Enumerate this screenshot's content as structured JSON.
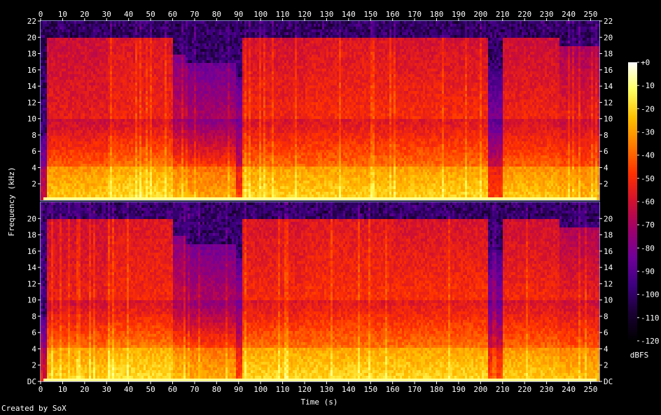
{
  "credit": "Created by SoX",
  "chart_data": {
    "type": "heatmap",
    "title": "",
    "xlabel": "Time (s)",
    "ylabel": "Frequency (kHz)",
    "colorbar_label": "dBFS",
    "xlim": [
      0,
      254
    ],
    "x_ticks": [
      "0",
      "10",
      "20",
      "30",
      "40",
      "50",
      "60",
      "70",
      "80",
      "90",
      "100",
      "110",
      "120",
      "130",
      "140",
      "150",
      "160",
      "170",
      "180",
      "190",
      "200",
      "210",
      "220",
      "230",
      "240",
      "250"
    ],
    "y_ticks_top": [
      "2",
      "4",
      "6",
      "8",
      "10",
      "12",
      "14",
      "16",
      "18",
      "20",
      "22"
    ],
    "y_ticks_bottom": [
      "DC",
      "2",
      "4",
      "6",
      "8",
      "10",
      "12",
      "14",
      "16",
      "18",
      "20"
    ],
    "ylim_khz": [
      0,
      22
    ],
    "colorbar_ticks": [
      "+0",
      "-10",
      "-20",
      "-30",
      "-40",
      "-50",
      "-60",
      "-70",
      "-80",
      "-90",
      "-100",
      "-110",
      "-120"
    ],
    "colorbar_range_db": [
      -120,
      0
    ],
    "colormap_stops": [
      "#000000",
      "#1a0033",
      "#3d0080",
      "#70009a",
      "#a0006a",
      "#d01030",
      "#ff3000",
      "#ff7a00",
      "#ffc000",
      "#ffff60",
      "#ffffff"
    ],
    "channels": 2,
    "segments": [
      {
        "start": 0,
        "end": 2,
        "ceiling_khz": 8,
        "upper_db": -100,
        "mid_db": -90,
        "low_db": -70
      },
      {
        "start": 2,
        "end": 30,
        "ceiling_khz": 20,
        "upper_db": -62,
        "mid_db": -55,
        "low_db": -32
      },
      {
        "start": 30,
        "end": 60,
        "ceiling_khz": 20,
        "upper_db": -58,
        "mid_db": -52,
        "low_db": -28
      },
      {
        "start": 60,
        "end": 65,
        "ceiling_khz": 18,
        "upper_db": -80,
        "mid_db": -65,
        "low_db": -35
      },
      {
        "start": 65,
        "end": 88,
        "ceiling_khz": 17,
        "upper_db": -84,
        "mid_db": -70,
        "low_db": -38
      },
      {
        "start": 88,
        "end": 91,
        "ceiling_khz": 15,
        "upper_db": -90,
        "mid_db": -75,
        "low_db": -55
      },
      {
        "start": 91,
        "end": 120,
        "ceiling_khz": 20,
        "upper_db": -60,
        "mid_db": -52,
        "low_db": -30
      },
      {
        "start": 120,
        "end": 160,
        "ceiling_khz": 20,
        "upper_db": -58,
        "mid_db": -50,
        "low_db": -30
      },
      {
        "start": 160,
        "end": 203,
        "ceiling_khz": 20,
        "upper_db": -60,
        "mid_db": -50,
        "low_db": -30
      },
      {
        "start": 203,
        "end": 210,
        "ceiling_khz": 16,
        "upper_db": -95,
        "mid_db": -80,
        "low_db": -55
      },
      {
        "start": 210,
        "end": 235,
        "ceiling_khz": 20,
        "upper_db": -62,
        "mid_db": -52,
        "low_db": -32
      },
      {
        "start": 235,
        "end": 254,
        "ceiling_khz": 19,
        "upper_db": -70,
        "mid_db": -55,
        "low_db": -35
      }
    ]
  }
}
